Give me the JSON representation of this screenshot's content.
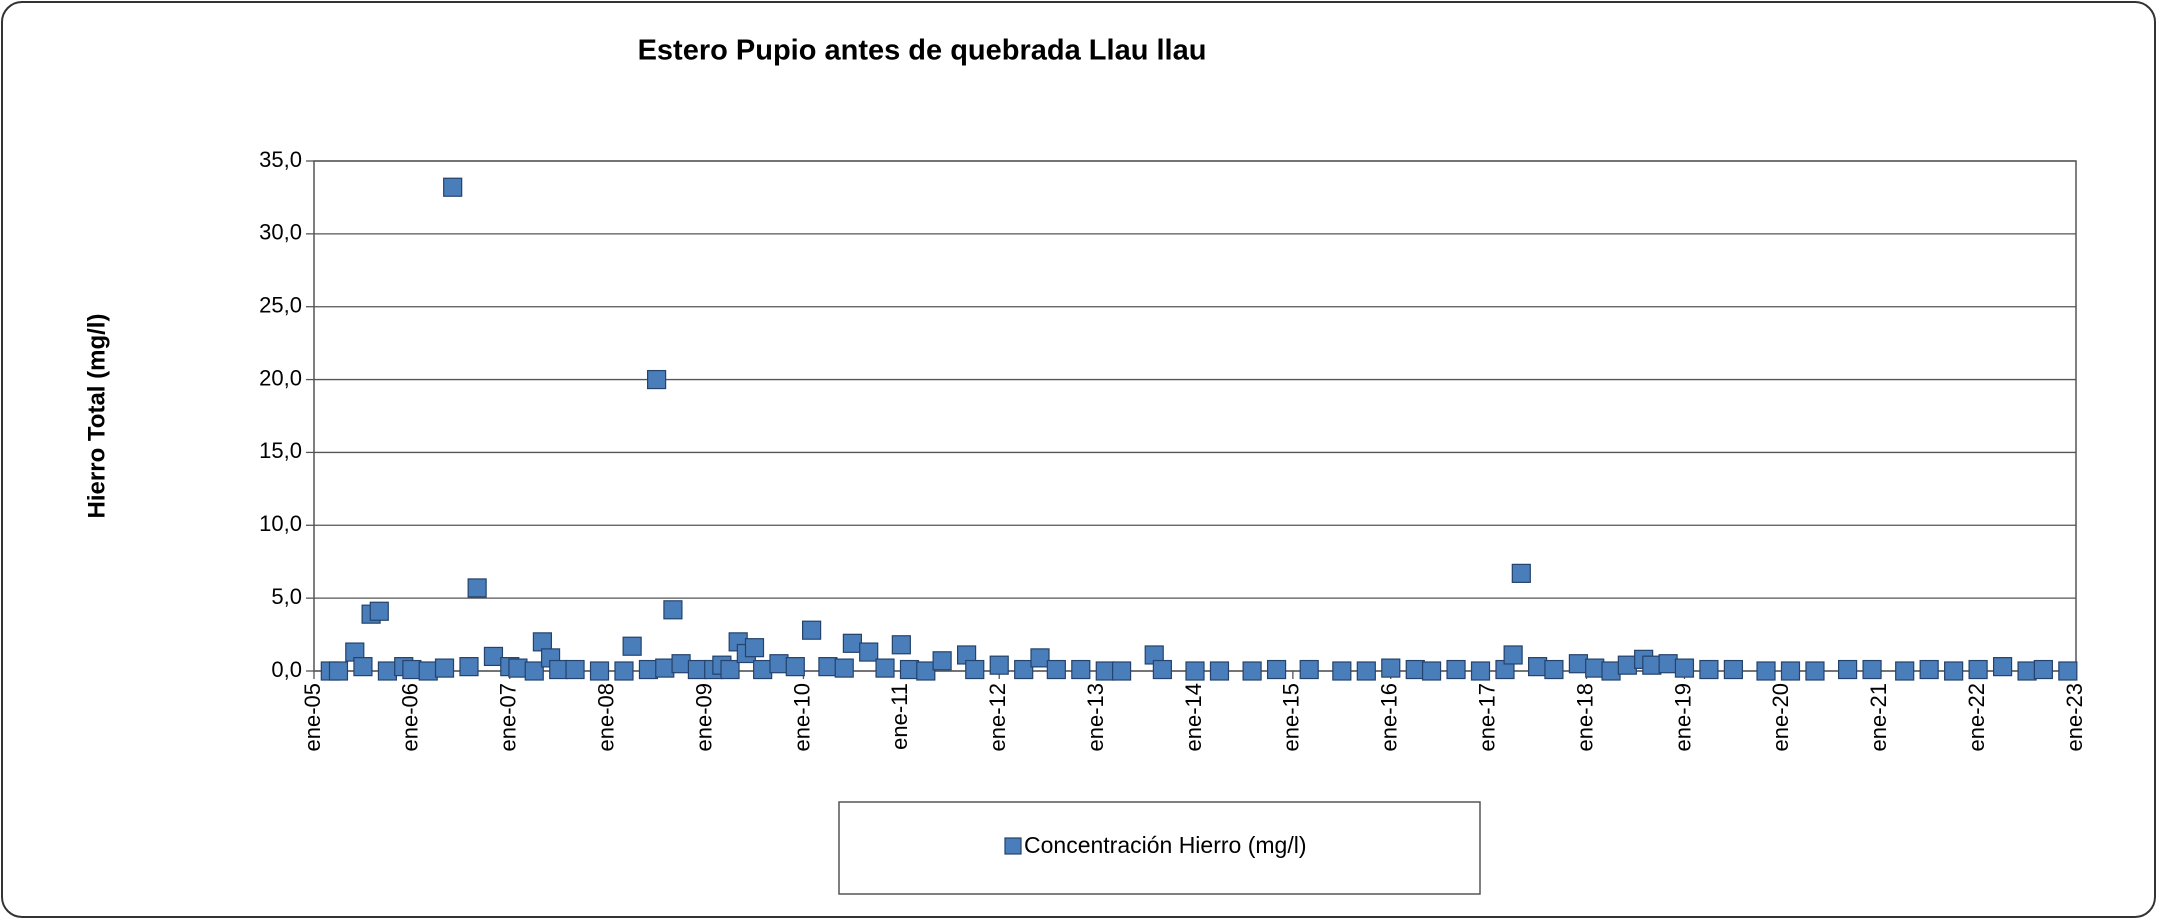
{
  "chart_data": {
    "type": "scatter",
    "title": "Estero Pupio antes de quebrada Llau llau",
    "y_label": "Hierro Total (mg/l)",
    "series": [
      {
        "name": "Concentración Hierro (mg/l)",
        "color": "#4a7ebb",
        "x": [
          "2005-03",
          "2005-04",
          "2005-06",
          "2005-07",
          "2005-08",
          "2005-09",
          "2005-10",
          "2005-12",
          "2006-01",
          "2006-03",
          "2006-05",
          "2006-06",
          "2006-08",
          "2006-09",
          "2006-11",
          "2007-01",
          "2007-02",
          "2007-04",
          "2007-05",
          "2007-06",
          "2007-07",
          "2007-09",
          "2007-12",
          "2008-03",
          "2008-04",
          "2008-06",
          "2008-07",
          "2008-08",
          "2008-09",
          "2008-10",
          "2008-12",
          "2009-02",
          "2009-03",
          "2009-04",
          "2009-05",
          "2009-06",
          "2009-07",
          "2009-08",
          "2009-10",
          "2009-12",
          "2010-02",
          "2010-04",
          "2010-06",
          "2010-07",
          "2010-09",
          "2010-11",
          "2011-01",
          "2011-02",
          "2011-04",
          "2011-06",
          "2011-09",
          "2011-10",
          "2012-01",
          "2012-04",
          "2012-06",
          "2012-08",
          "2012-11",
          "2013-02",
          "2013-04",
          "2013-08",
          "2013-09",
          "2014-01",
          "2014-04",
          "2014-08",
          "2014-11",
          "2015-03",
          "2015-07",
          "2015-10",
          "2016-01",
          "2016-04",
          "2016-06",
          "2016-09",
          "2016-12",
          "2017-03",
          "2017-04",
          "2017-05",
          "2017-07",
          "2017-09",
          "2017-12",
          "2018-02",
          "2018-04",
          "2018-06",
          "2018-08",
          "2018-09",
          "2018-11",
          "2019-01",
          "2019-04",
          "2019-07",
          "2019-11",
          "2020-02",
          "2020-05",
          "2020-09",
          "2020-12",
          "2021-04",
          "2021-07",
          "2021-10",
          "2022-01",
          "2022-04",
          "2022-07",
          "2022-09",
          "2022-12"
        ],
        "values": [
          0,
          0,
          1.3,
          0.3,
          3.9,
          4.1,
          0,
          0.3,
          0.1,
          0,
          0.2,
          33.2,
          0.3,
          5.7,
          1.0,
          0.3,
          0.2,
          0,
          2.0,
          0.9,
          0.1,
          0.1,
          0,
          0,
          1.7,
          0.1,
          20.0,
          0.2,
          4.2,
          0.5,
          0.1,
          0.1,
          0.4,
          0.1,
          2.0,
          1.2,
          1.6,
          0.1,
          0.5,
          0.3,
          2.8,
          0.3,
          0.2,
          1.9,
          1.3,
          0.2,
          1.8,
          0.1,
          0,
          0.7,
          1.1,
          0.1,
          0.4,
          0.1,
          0.9,
          0.1,
          0.1,
          0,
          0,
          1.1,
          0.1,
          0,
          0,
          0,
          0.1,
          0.1,
          0,
          0,
          0.2,
          0.1,
          0,
          0.1,
          0,
          0.1,
          1.1,
          6.7,
          0.3,
          0.1,
          0.5,
          0.2,
          0,
          0.4,
          0.8,
          0.4,
          0.5,
          0.2,
          0.1,
          0.1,
          0,
          0,
          0,
          0.1,
          0.1,
          0,
          0.1,
          0,
          0.1,
          0.3,
          0,
          0.1,
          0
        ]
      }
    ],
    "xlim": [
      "2005-01",
      "2023-01"
    ],
    "xticks": [
      {
        "value": "2005-01",
        "label": "ene-05"
      },
      {
        "value": "2006-01",
        "label": "ene-06"
      },
      {
        "value": "2007-01",
        "label": "ene-07"
      },
      {
        "value": "2008-01",
        "label": "ene-08"
      },
      {
        "value": "2009-01",
        "label": "ene-09"
      },
      {
        "value": "2010-01",
        "label": "ene-10"
      },
      {
        "value": "2011-01",
        "label": "ene-11"
      },
      {
        "value": "2012-01",
        "label": "ene-12"
      },
      {
        "value": "2013-01",
        "label": "ene-13"
      },
      {
        "value": "2014-01",
        "label": "ene-14"
      },
      {
        "value": "2015-01",
        "label": "ene-15"
      },
      {
        "value": "2016-01",
        "label": "ene-16"
      },
      {
        "value": "2017-01",
        "label": "ene-17"
      },
      {
        "value": "2018-01",
        "label": "ene-18"
      },
      {
        "value": "2019-01",
        "label": "ene-19"
      },
      {
        "value": "2020-01",
        "label": "ene-20"
      },
      {
        "value": "2021-01",
        "label": "ene-21"
      },
      {
        "value": "2022-01",
        "label": "ene-22"
      },
      {
        "value": "2023-01",
        "label": "ene-23"
      }
    ],
    "ylim": [
      0,
      35
    ],
    "yticks": [
      {
        "value": 0,
        "label": "0,0"
      },
      {
        "value": 5,
        "label": "5,0"
      },
      {
        "value": 10,
        "label": "10,0"
      },
      {
        "value": 15,
        "label": "15,0"
      },
      {
        "value": 20,
        "label": "20,0"
      },
      {
        "value": 25,
        "label": "25,0"
      },
      {
        "value": 30,
        "label": "30,0"
      },
      {
        "value": 35,
        "label": "35,0"
      }
    ],
    "grid": true
  }
}
